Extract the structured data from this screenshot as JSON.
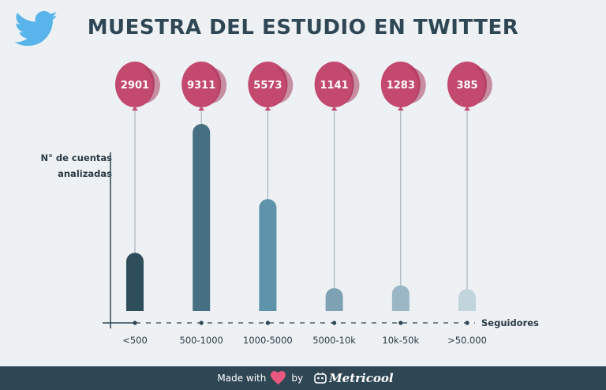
{
  "title": "MUESTRA DEL ESTUDIO EN TWITTER",
  "colors": {
    "background": "#edf1f4",
    "title": "#2f4654",
    "balloon": "#c3496f",
    "footer": "#2f4654",
    "bars": [
      "#2f4e5b",
      "#466f82",
      "#5d93ab",
      "#7ea2b4",
      "#9bb7c6",
      "#c2d4dc"
    ]
  },
  "footer": {
    "made_with": "Made with",
    "by": "by",
    "brand": "Metricool"
  },
  "chart_data": {
    "type": "bar",
    "title": "MUESTRA DEL ESTUDIO EN TWITTER",
    "ylabel_lines": [
      "N° de cuentas",
      "analizadas"
    ],
    "xlabel": "Seguidores",
    "categories": [
      "<500",
      "500-1000",
      "1000-5000",
      "5000-10k",
      "10k-50k",
      ">50.000"
    ],
    "values": [
      2901,
      9311,
      5573,
      1141,
      1283,
      385
    ],
    "labels": [
      "2901",
      "9311",
      "5573",
      "1141",
      "1283",
      "385"
    ],
    "ylim": [
      0,
      9311
    ],
    "grid": false
  }
}
